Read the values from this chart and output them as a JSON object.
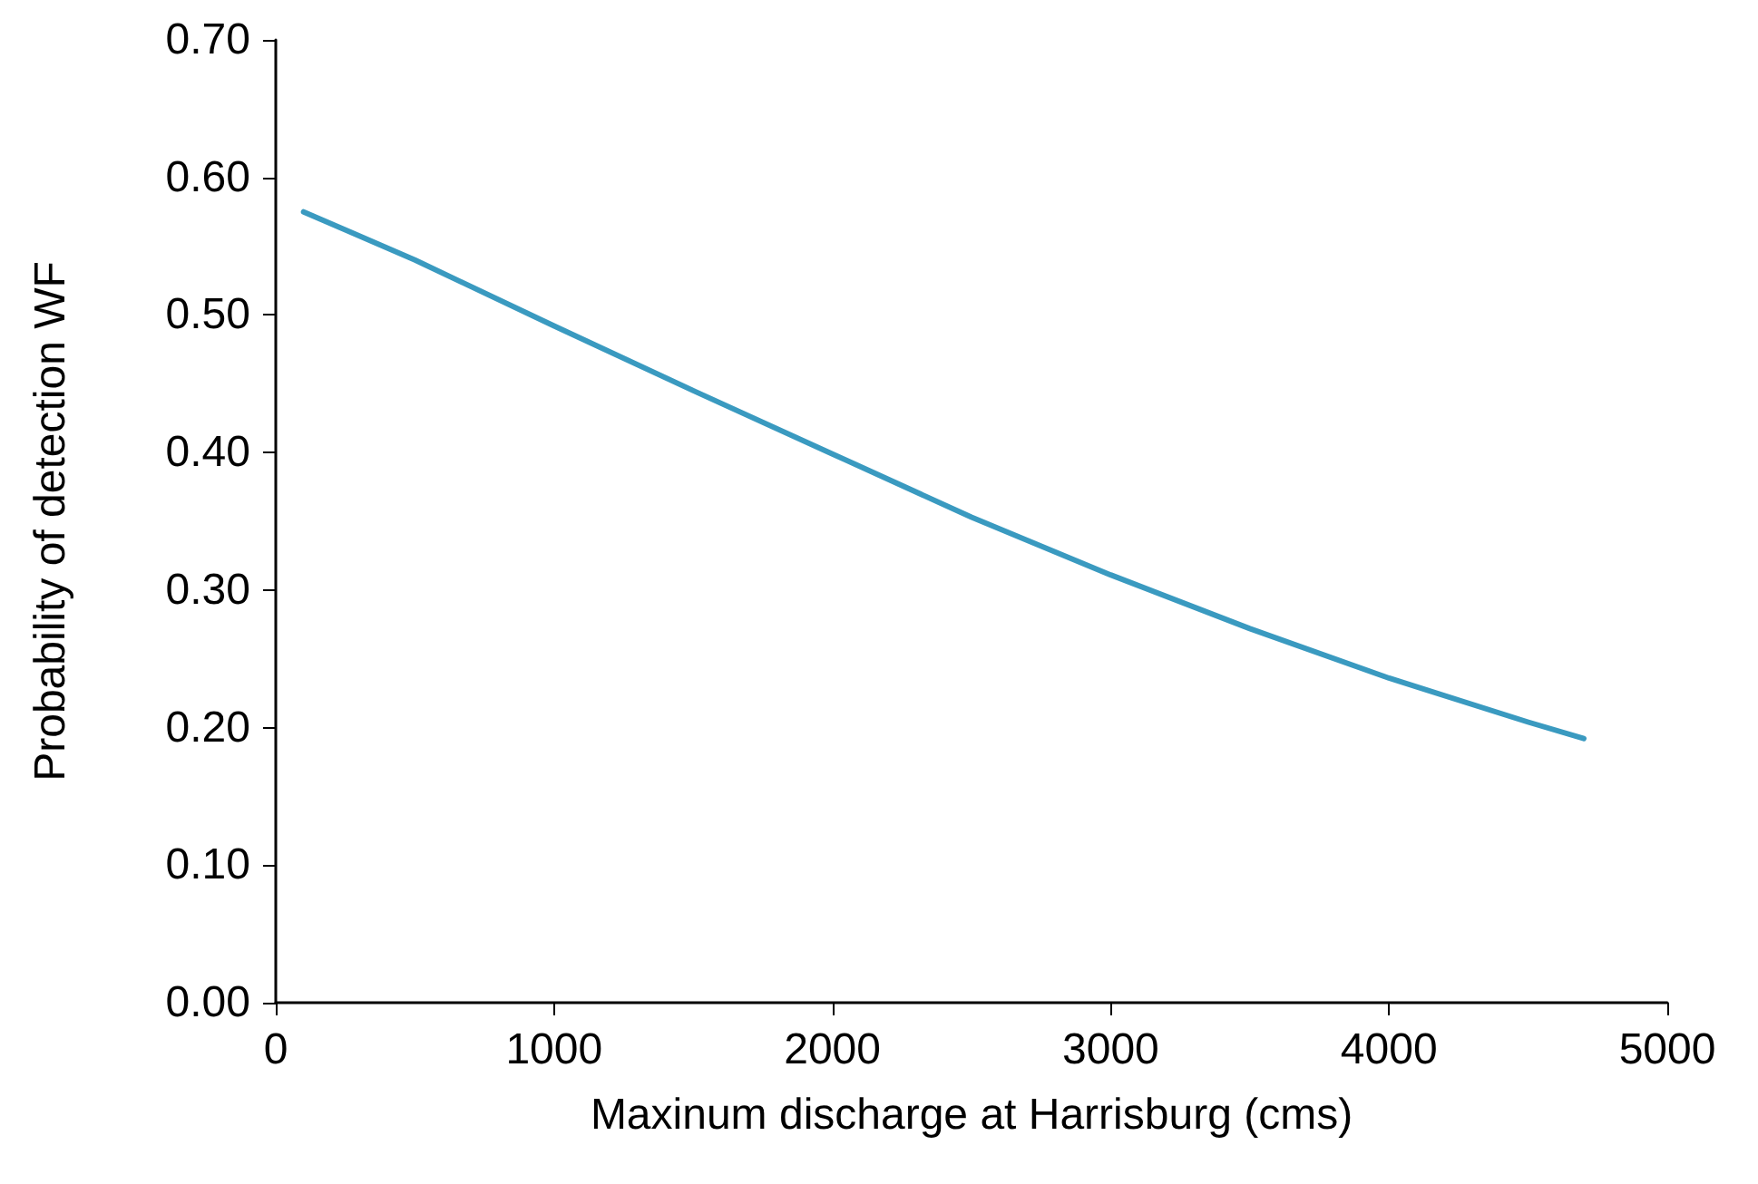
{
  "chart_data": {
    "type": "line",
    "xlabel": "Maxinum discharge at Harrisburg (cms)",
    "ylabel": "Probability of detection WF",
    "x": [
      100,
      500,
      1000,
      1500,
      2000,
      2500,
      3000,
      3500,
      4000,
      4500,
      4700
    ],
    "series": [
      {
        "color": "#3a9ac0",
        "values": [
          0.575,
          0.54,
          0.492,
          0.445,
          0.399,
          0.353,
          0.311,
          0.272,
          0.236,
          0.204,
          0.192
        ]
      }
    ],
    "xlim": [
      0,
      5000
    ],
    "xticks": [
      0,
      1000,
      2000,
      3000,
      4000,
      5000
    ],
    "ylim": [
      0,
      0.7
    ],
    "yticks": [
      {
        "value": 0,
        "label": "0.00"
      },
      {
        "value": 0.1,
        "label": "0.10"
      },
      {
        "value": 0.2,
        "label": "0.20"
      },
      {
        "value": 0.3,
        "label": "0.30"
      },
      {
        "value": 0.4,
        "label": "0.40"
      },
      {
        "value": 0.5,
        "label": "0.50"
      },
      {
        "value": 0.6,
        "label": "0.60"
      },
      {
        "value": 0.7,
        "label": "0.70"
      }
    ],
    "grid": false,
    "marker": "none",
    "line_style": "solid"
  }
}
